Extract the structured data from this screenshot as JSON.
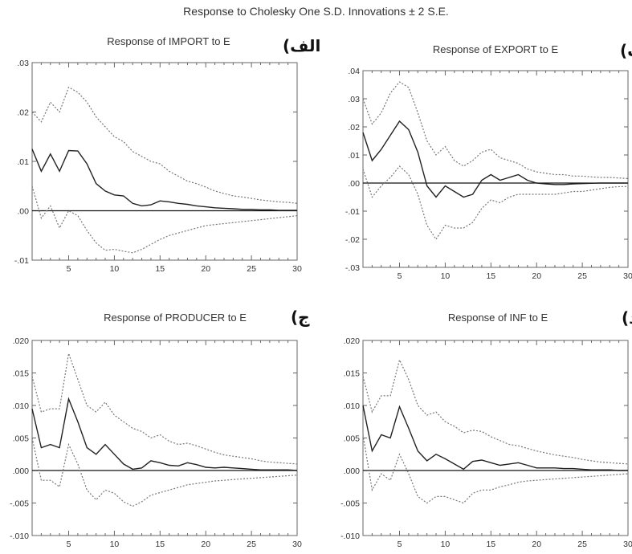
{
  "title": "Response to Cholesky One S.D. Innovations ± 2 S.E.",
  "colors": {
    "line": "#222222",
    "band": "#777777",
    "zero": "#111111",
    "frame": "#666666"
  },
  "chart_data": [
    {
      "type": "line",
      "title": "Response of IMPORT to E",
      "panel_label": "الف)",
      "x": [
        1,
        2,
        3,
        4,
        5,
        6,
        7,
        8,
        9,
        10,
        11,
        12,
        13,
        14,
        15,
        16,
        17,
        18,
        19,
        20,
        21,
        22,
        23,
        24,
        25,
        26,
        27,
        28,
        29,
        30
      ],
      "xticks": [
        "5",
        "10",
        "15",
        "20",
        "25",
        "30"
      ],
      "xtick_values": [
        5,
        10,
        15,
        20,
        25,
        30
      ],
      "ylim": [
        -0.01,
        0.03
      ],
      "yticks": [
        ".03",
        ".02",
        ".01",
        ".00",
        "-.01"
      ],
      "ytick_values": [
        0.03,
        0.02,
        0.01,
        0.0,
        -0.01
      ],
      "series": [
        {
          "role": "upper",
          "values": [
            0.02,
            0.018,
            0.022,
            0.02,
            0.025,
            0.024,
            0.022,
            0.019,
            0.017,
            0.015,
            0.014,
            0.012,
            0.011,
            0.01,
            0.0095,
            0.008,
            0.007,
            0.006,
            0.0055,
            0.0048,
            0.004,
            0.0035,
            0.003,
            0.0028,
            0.0025,
            0.0022,
            0.002,
            0.0018,
            0.0017,
            0.0015
          ]
        },
        {
          "role": "response",
          "values": [
            0.0125,
            0.008,
            0.0115,
            0.008,
            0.0122,
            0.0121,
            0.0095,
            0.0055,
            0.004,
            0.0032,
            0.003,
            0.0015,
            0.001,
            0.0012,
            0.002,
            0.0018,
            0.0015,
            0.0013,
            0.001,
            0.0008,
            0.0006,
            0.0005,
            0.0004,
            0.0003,
            0.0003,
            0.0002,
            0.0002,
            0.0001,
            0.0001,
            0.0001
          ]
        },
        {
          "role": "lower",
          "values": [
            0.005,
            -0.0015,
            0.001,
            -0.0035,
            0.0,
            -0.001,
            -0.004,
            -0.0065,
            -0.008,
            -0.0078,
            -0.0082,
            -0.0085,
            -0.0078,
            -0.0068,
            -0.0058,
            -0.005,
            -0.0045,
            -0.004,
            -0.0035,
            -0.003,
            -0.0028,
            -0.0026,
            -0.0024,
            -0.0022,
            -0.002,
            -0.0018,
            -0.0016,
            -0.0014,
            -0.0012,
            -0.001
          ]
        }
      ]
    },
    {
      "type": "line",
      "title": "Response of EXPORT to E",
      "panel_label": "ب)",
      "x": [
        1,
        2,
        3,
        4,
        5,
        6,
        7,
        8,
        9,
        10,
        11,
        12,
        13,
        14,
        15,
        16,
        17,
        18,
        19,
        20,
        21,
        22,
        23,
        24,
        25,
        26,
        27,
        28,
        29,
        30
      ],
      "xticks": [
        "5",
        "10",
        "15",
        "20",
        "25",
        "30"
      ],
      "xtick_values": [
        5,
        10,
        15,
        20,
        25,
        30
      ],
      "ylim": [
        -0.03,
        0.04
      ],
      "yticks": [
        ".04",
        ".03",
        ".02",
        ".01",
        ".00",
        "-.01",
        "-.02",
        "-.03"
      ],
      "ytick_values": [
        0.04,
        0.03,
        0.02,
        0.01,
        0.0,
        -0.01,
        -0.02,
        -0.03
      ],
      "series": [
        {
          "role": "upper",
          "values": [
            0.03,
            0.021,
            0.025,
            0.032,
            0.036,
            0.034,
            0.025,
            0.015,
            0.01,
            0.013,
            0.008,
            0.006,
            0.008,
            0.011,
            0.012,
            0.009,
            0.008,
            0.007,
            0.005,
            0.004,
            0.0035,
            0.003,
            0.003,
            0.0025,
            0.0025,
            0.0022,
            0.002,
            0.002,
            0.0018,
            0.0016
          ]
        },
        {
          "role": "response",
          "values": [
            0.018,
            0.008,
            0.012,
            0.017,
            0.022,
            0.019,
            0.011,
            -0.001,
            -0.005,
            -0.001,
            -0.003,
            -0.005,
            -0.004,
            0.001,
            0.003,
            0.001,
            0.002,
            0.003,
            0.001,
            0.0,
            -0.0003,
            -0.0005,
            -0.0005,
            -0.0003,
            -0.0002,
            -0.0001,
            0.0,
            0.0,
            0.0,
            0.0
          ]
        },
        {
          "role": "lower",
          "values": [
            0.005,
            -0.005,
            -0.001,
            0.002,
            0.006,
            0.003,
            -0.004,
            -0.015,
            -0.02,
            -0.015,
            -0.016,
            -0.016,
            -0.014,
            -0.009,
            -0.006,
            -0.007,
            -0.005,
            -0.004,
            -0.004,
            -0.004,
            -0.004,
            -0.004,
            -0.0035,
            -0.003,
            -0.003,
            -0.0025,
            -0.002,
            -0.0015,
            -0.0013,
            -0.0012
          ]
        }
      ]
    },
    {
      "type": "line",
      "title": "Response of PRODUCER to E",
      "panel_label": "ج)",
      "x": [
        1,
        2,
        3,
        4,
        5,
        6,
        7,
        8,
        9,
        10,
        11,
        12,
        13,
        14,
        15,
        16,
        17,
        18,
        19,
        20,
        21,
        22,
        23,
        24,
        25,
        26,
        27,
        28,
        29,
        30
      ],
      "xticks": [
        "5",
        "10",
        "15",
        "20",
        "25",
        "30"
      ],
      "xtick_values": [
        5,
        10,
        15,
        20,
        25,
        30
      ],
      "ylim": [
        -0.01,
        0.02
      ],
      "yticks": [
        ".020",
        ".015",
        ".010",
        ".005",
        ".000",
        "-.005",
        "-.010"
      ],
      "ytick_values": [
        0.02,
        0.015,
        0.01,
        0.005,
        0.0,
        -0.005,
        -0.01
      ],
      "series": [
        {
          "role": "upper",
          "values": [
            0.0145,
            0.009,
            0.0095,
            0.0095,
            0.018,
            0.014,
            0.01,
            0.009,
            0.0105,
            0.0085,
            0.0075,
            0.0065,
            0.006,
            0.005,
            0.0055,
            0.0045,
            0.004,
            0.0042,
            0.0038,
            0.0033,
            0.0028,
            0.0024,
            0.0022,
            0.002,
            0.0018,
            0.0015,
            0.0013,
            0.0012,
            0.0011,
            0.001
          ]
        },
        {
          "role": "response",
          "values": [
            0.0095,
            0.0035,
            0.004,
            0.0035,
            0.011,
            0.0075,
            0.0035,
            0.0025,
            0.004,
            0.0025,
            0.001,
            0.0002,
            0.0004,
            0.0015,
            0.0012,
            0.0008,
            0.0007,
            0.0012,
            0.0009,
            0.0005,
            0.0004,
            0.0005,
            0.0004,
            0.0003,
            0.0002,
            0.0001,
            0.0001,
            0.0001,
            0.0001,
            0.0
          ]
        },
        {
          "role": "lower",
          "values": [
            0.005,
            -0.0015,
            -0.0015,
            -0.0025,
            0.004,
            0.001,
            -0.003,
            -0.0045,
            -0.003,
            -0.0035,
            -0.0048,
            -0.0055,
            -0.0048,
            -0.0038,
            -0.0034,
            -0.003,
            -0.0026,
            -0.0022,
            -0.002,
            -0.0018,
            -0.0016,
            -0.0015,
            -0.0014,
            -0.0013,
            -0.0012,
            -0.0011,
            -0.001,
            -0.0009,
            -0.0008,
            -0.0007
          ]
        }
      ]
    },
    {
      "type": "line",
      "title": "Response of INF to E",
      "panel_label": "د)",
      "x": [
        1,
        2,
        3,
        4,
        5,
        6,
        7,
        8,
        9,
        10,
        11,
        12,
        13,
        14,
        15,
        16,
        17,
        18,
        19,
        20,
        21,
        22,
        23,
        24,
        25,
        26,
        27,
        28,
        29,
        30
      ],
      "xticks": [
        "5",
        "10",
        "15",
        "20",
        "25",
        "30"
      ],
      "xtick_values": [
        5,
        10,
        15,
        20,
        25,
        30
      ],
      "ylim": [
        -0.01,
        0.02
      ],
      "yticks": [
        ".020",
        ".015",
        ".010",
        ".005",
        ".000",
        "-.005",
        "-.010"
      ],
      "ytick_values": [
        0.02,
        0.015,
        0.01,
        0.005,
        0.0,
        -0.005,
        -0.01
      ],
      "series": [
        {
          "role": "upper",
          "values": [
            0.0145,
            0.009,
            0.0115,
            0.0115,
            0.017,
            0.014,
            0.01,
            0.0085,
            0.009,
            0.0075,
            0.0068,
            0.0058,
            0.0062,
            0.006,
            0.0052,
            0.0046,
            0.004,
            0.0038,
            0.0034,
            0.003,
            0.0027,
            0.0024,
            0.0022,
            0.002,
            0.0017,
            0.0015,
            0.0013,
            0.0012,
            0.0011,
            0.001
          ]
        },
        {
          "role": "response",
          "values": [
            0.01,
            0.003,
            0.0055,
            0.005,
            0.0098,
            0.0065,
            0.003,
            0.0015,
            0.0025,
            0.0018,
            0.001,
            0.0002,
            0.0014,
            0.0016,
            0.0012,
            0.0008,
            0.001,
            0.0012,
            0.0008,
            0.0004,
            0.0004,
            0.0004,
            0.0003,
            0.0003,
            0.0002,
            0.0001,
            0.0001,
            0.0001,
            0.0,
            0.0
          ]
        },
        {
          "role": "lower",
          "values": [
            0.0055,
            -0.003,
            -0.0005,
            -0.0015,
            0.0025,
            -0.0005,
            -0.004,
            -0.005,
            -0.004,
            -0.004,
            -0.0045,
            -0.005,
            -0.0035,
            -0.003,
            -0.003,
            -0.0025,
            -0.0022,
            -0.0018,
            -0.0016,
            -0.0015,
            -0.0014,
            -0.0013,
            -0.0012,
            -0.0011,
            -0.001,
            -0.0009,
            -0.0008,
            -0.0007,
            -0.0006,
            -0.0005
          ]
        }
      ]
    }
  ]
}
